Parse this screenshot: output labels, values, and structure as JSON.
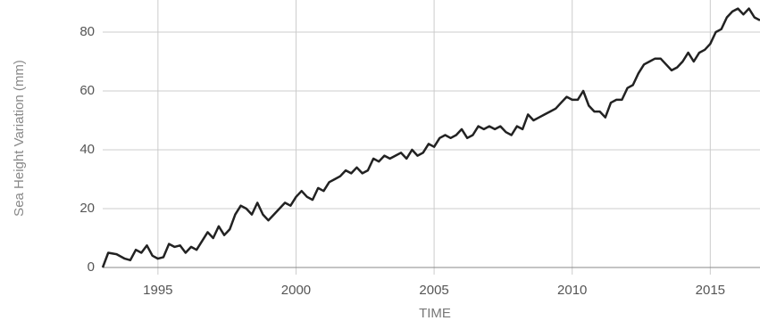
{
  "chart_data": {
    "type": "line",
    "xlabel": "TIME",
    "ylabel": "Sea Height Variation (mm)",
    "x": [
      1993.0,
      1993.2,
      1993.5,
      1993.8,
      1994.0,
      1994.2,
      1994.4,
      1994.6,
      1994.8,
      1995.0,
      1995.2,
      1995.4,
      1995.6,
      1995.8,
      1996.0,
      1996.2,
      1996.4,
      1996.6,
      1996.8,
      1997.0,
      1997.2,
      1997.4,
      1997.6,
      1997.8,
      1998.0,
      1998.2,
      1998.4,
      1998.6,
      1998.8,
      1999.0,
      1999.2,
      1999.4,
      1999.6,
      1999.8,
      2000.0,
      2000.2,
      2000.4,
      2000.6,
      2000.8,
      2001.0,
      2001.2,
      2001.4,
      2001.6,
      2001.8,
      2002.0,
      2002.2,
      2002.4,
      2002.6,
      2002.8,
      2003.0,
      2003.2,
      2003.4,
      2003.6,
      2003.8,
      2004.0,
      2004.2,
      2004.4,
      2004.6,
      2004.8,
      2005.0,
      2005.2,
      2005.4,
      2005.6,
      2005.8,
      2006.0,
      2006.2,
      2006.4,
      2006.6,
      2006.8,
      2007.0,
      2007.2,
      2007.4,
      2007.6,
      2007.8,
      2008.0,
      2008.2,
      2008.4,
      2008.6,
      2008.8,
      2009.0,
      2009.2,
      2009.4,
      2009.6,
      2009.8,
      2010.0,
      2010.2,
      2010.4,
      2010.6,
      2010.8,
      2011.0,
      2011.2,
      2011.4,
      2011.6,
      2011.8,
      2012.0,
      2012.2,
      2012.4,
      2012.6,
      2012.8,
      2013.0,
      2013.2,
      2013.4,
      2013.6,
      2013.8,
      2014.0,
      2014.2,
      2014.4,
      2014.6,
      2014.8,
      2015.0,
      2015.2,
      2015.4,
      2015.6,
      2015.8,
      2016.0,
      2016.2,
      2016.4,
      2016.6,
      2016.8
    ],
    "series": [
      {
        "color": "#222222",
        "values": [
          0,
          5,
          4.5,
          3,
          2.5,
          6,
          5,
          7.5,
          4,
          3,
          3.5,
          8,
          7,
          7.5,
          5,
          7,
          6,
          9,
          12,
          10,
          14,
          11,
          13,
          18,
          21,
          20,
          18,
          22,
          18,
          16,
          18,
          20,
          22,
          21,
          24,
          26,
          24,
          23,
          27,
          26,
          29,
          30,
          31,
          33,
          32,
          34,
          32,
          33,
          37,
          36,
          38,
          37,
          38,
          39,
          37,
          40,
          38,
          39,
          42,
          41,
          44,
          45,
          44,
          45,
          47,
          44,
          45,
          48,
          47,
          48,
          47,
          48,
          46,
          45,
          48,
          47,
          52,
          50,
          51,
          52,
          53,
          54,
          56,
          58,
          57,
          57,
          60,
          55,
          53,
          53,
          51,
          56,
          57,
          57,
          61,
          62,
          66,
          69,
          70,
          71,
          71,
          69,
          67,
          68,
          70,
          73,
          70,
          73,
          74,
          76,
          80,
          81,
          85,
          87,
          88,
          86,
          88,
          85,
          84
        ]
      }
    ],
    "xlim": [
      1993,
      2016.8
    ],
    "xticks": [
      1995,
      2000,
      2005,
      2010,
      2015
    ],
    "ylim": [
      0,
      88
    ],
    "yticks": [
      0,
      20,
      40,
      60,
      80
    ],
    "grid": true
  }
}
